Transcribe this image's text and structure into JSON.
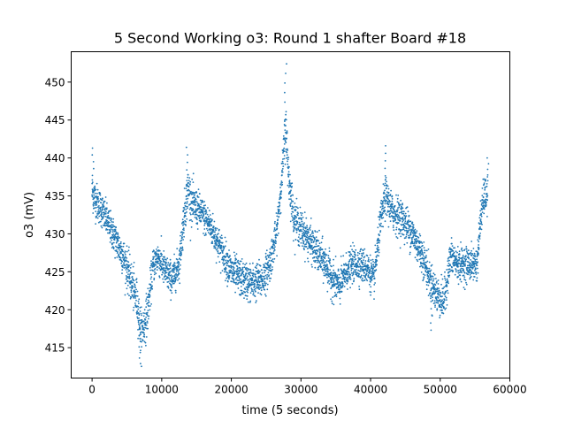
{
  "chart_data": {
    "type": "scatter",
    "title": "5 Second Working o3: Round 1 shafter Board #18",
    "xlabel": "time (5 seconds)",
    "ylabel": "o3 (mV)",
    "xlim": [
      -3000,
      60000
    ],
    "ylim": [
      411,
      454
    ],
    "x_ticks": [
      0,
      10000,
      20000,
      30000,
      40000,
      50000,
      60000
    ],
    "y_ticks": [
      415,
      420,
      425,
      430,
      435,
      440,
      445,
      450
    ],
    "x_tick_labels": [
      "0",
      "10000",
      "20000",
      "30000",
      "40000",
      "50000",
      "60000"
    ],
    "y_tick_labels": [
      "415",
      "420",
      "425",
      "430",
      "435",
      "440",
      "445",
      "450"
    ],
    "marker_color": "#1f77b4",
    "grid": false,
    "legend": false,
    "series": [
      {
        "trend_x": [
          0,
          500,
          1500,
          3000,
          4500,
          5500,
          6500,
          7000,
          7500,
          8000,
          8800,
          9500,
          10500,
          11500,
          12500,
          13300,
          13800,
          14300,
          15500,
          17000,
          18500,
          20000,
          21500,
          23000,
          24500,
          25500,
          26500,
          27300,
          27800,
          28300,
          29000,
          30500,
          32000,
          33500,
          34500,
          35500,
          36500,
          37500,
          38500,
          39500,
          40500,
          41500,
          42200,
          43000,
          44500,
          46000,
          47500,
          48500,
          49500,
          50500,
          51000,
          51500,
          52500,
          53500,
          54500,
          55300,
          55800,
          56300,
          56800
        ],
        "trend_y": [
          435.5,
          434.5,
          433,
          430,
          427,
          424,
          421,
          417,
          418,
          420,
          426,
          427,
          425,
          424,
          426,
          433,
          436,
          434,
          433,
          431,
          428,
          425,
          424,
          423.5,
          424,
          426,
          430,
          438,
          444,
          437,
          432,
          430,
          428,
          426,
          424,
          423,
          425,
          426,
          426,
          425.5,
          424,
          432,
          435,
          433,
          432,
          430,
          427,
          424,
          422,
          421,
          424,
          427,
          426,
          426,
          426,
          426,
          432,
          435,
          435
        ],
        "spread": [
          2.2,
          2.2,
          2.0,
          2.0,
          2.2,
          2.5,
          2.5,
          2.5,
          2.5,
          2.5,
          2.0,
          2.0,
          2.0,
          2.0,
          2.0,
          2.5,
          2.5,
          2.5,
          2.0,
          2.0,
          2.0,
          2.2,
          2.2,
          2.2,
          2.2,
          2.2,
          2.0,
          2.0,
          3.0,
          2.5,
          2.2,
          2.2,
          2.2,
          2.2,
          2.2,
          2.2,
          2.0,
          2.0,
          2.0,
          2.0,
          2.0,
          2.2,
          2.2,
          2.2,
          2.2,
          2.2,
          2.2,
          2.2,
          2.2,
          2.2,
          2.2,
          2.2,
          2.0,
          2.0,
          2.0,
          2.0,
          2.2,
          2.2,
          2.2
        ],
        "peaks": [
          {
            "x": 100,
            "y": 441.3
          },
          {
            "x": 6900,
            "y": 412.9
          },
          {
            "x": 13600,
            "y": 441.4
          },
          {
            "x": 27800,
            "y": 452.4
          },
          {
            "x": 42200,
            "y": 441.6
          },
          {
            "x": 48700,
            "y": 417.3
          },
          {
            "x": 56800,
            "y": 440.0
          }
        ]
      }
    ]
  }
}
